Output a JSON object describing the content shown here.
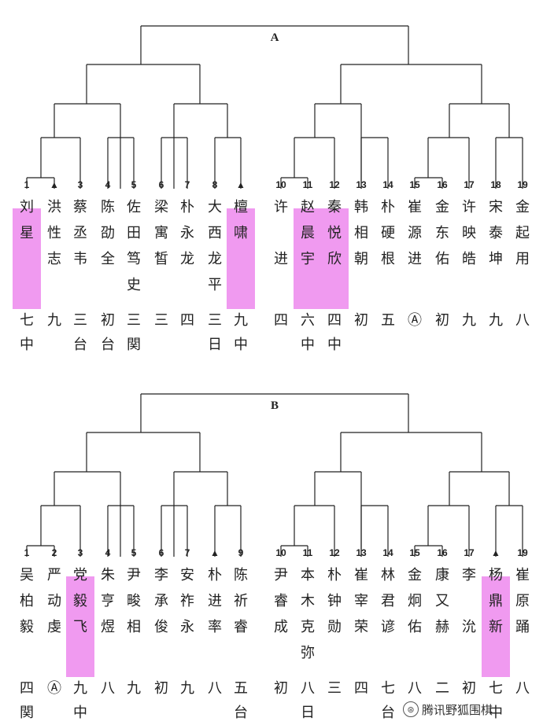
{
  "brackets": [
    {
      "title": "A",
      "players": [
        {
          "num": "1",
          "name": "刘星",
          "rank": "七中",
          "highlight": true
        },
        {
          "num": "▲",
          "name": "洪性志",
          "rank": "九"
        },
        {
          "num": "3",
          "name": "蔡丞韦",
          "rank": "三台"
        },
        {
          "num": "4",
          "name": "陈劭全",
          "rank": "初台"
        },
        {
          "num": "5",
          "name": "佐田笃史",
          "rank": "三関"
        },
        {
          "num": "6",
          "name": "梁寓皙",
          "rank": "三"
        },
        {
          "num": "7",
          "name": "朴永龙",
          "rank": "四"
        },
        {
          "num": "8",
          "name": "大西龙平",
          "rank": "三日"
        },
        {
          "num": "▲",
          "name": "檀啸",
          "rank": "九中",
          "highlight": true
        },
        {
          "num": "10",
          "name": "许进",
          "rank": "四",
          "gap": true
        },
        {
          "num": "11",
          "name": "赵晨宇",
          "rank": "六中",
          "highlight": true
        },
        {
          "num": "12",
          "name": "秦悦欣",
          "rank": "四中",
          "highlight": true
        },
        {
          "num": "13",
          "name": "韩相朝",
          "rank": "初"
        },
        {
          "num": "14",
          "name": "朴硬根",
          "rank": "五"
        },
        {
          "num": "15",
          "name": "崔源进",
          "rank": "Ⓐ"
        },
        {
          "num": "16",
          "name": "金东佑",
          "rank": "初"
        },
        {
          "num": "17",
          "name": "许映皓",
          "rank": "九"
        },
        {
          "num": "18",
          "name": "宋泰坤",
          "rank": "九"
        },
        {
          "num": "19",
          "name": "金起用",
          "rank": "八"
        }
      ]
    },
    {
      "title": "B",
      "players": [
        {
          "num": "1",
          "name": "吴柏毅",
          "rank": "四関"
        },
        {
          "num": "2",
          "name": "严动虔",
          "rank": "Ⓐ"
        },
        {
          "num": "3",
          "name": "党毅飞",
          "rank": "九中",
          "highlight": true
        },
        {
          "num": "4",
          "name": "朱亨煜",
          "rank": "八"
        },
        {
          "num": "5",
          "name": "尹畯相",
          "rank": "九"
        },
        {
          "num": "6",
          "name": "李承俊",
          "rank": "初"
        },
        {
          "num": "7",
          "name": "安祚永",
          "rank": "九"
        },
        {
          "num": "▲",
          "name": "朴进率",
          "rank": "八"
        },
        {
          "num": "9",
          "name": "陈祈睿",
          "rank": "五台"
        },
        {
          "num": "10",
          "name": "尹睿成",
          "rank": "初"
        },
        {
          "num": "11",
          "name": "本木克弥",
          "rank": "八日"
        },
        {
          "num": "12",
          "name": "朴钟勋",
          "rank": "三"
        },
        {
          "num": "13",
          "name": "崔宰荣",
          "rank": "四"
        },
        {
          "num": "14",
          "name": "林君谚",
          "rank": "七台"
        },
        {
          "num": "15",
          "name": "金炯佑",
          "rank": "八"
        },
        {
          "num": "16",
          "name": "康又赫",
          "rank": "二"
        },
        {
          "num": "17",
          "name": "李沇",
          "rank": "初",
          "gap": true
        },
        {
          "num": "▲",
          "name": "杨鼎新",
          "rank": "七中",
          "highlight": true
        },
        {
          "num": "19",
          "name": "崔原踊",
          "rank": "八"
        }
      ]
    }
  ],
  "watermark": {
    "icon": "⊛",
    "text": "腾讯野狐围棋"
  }
}
